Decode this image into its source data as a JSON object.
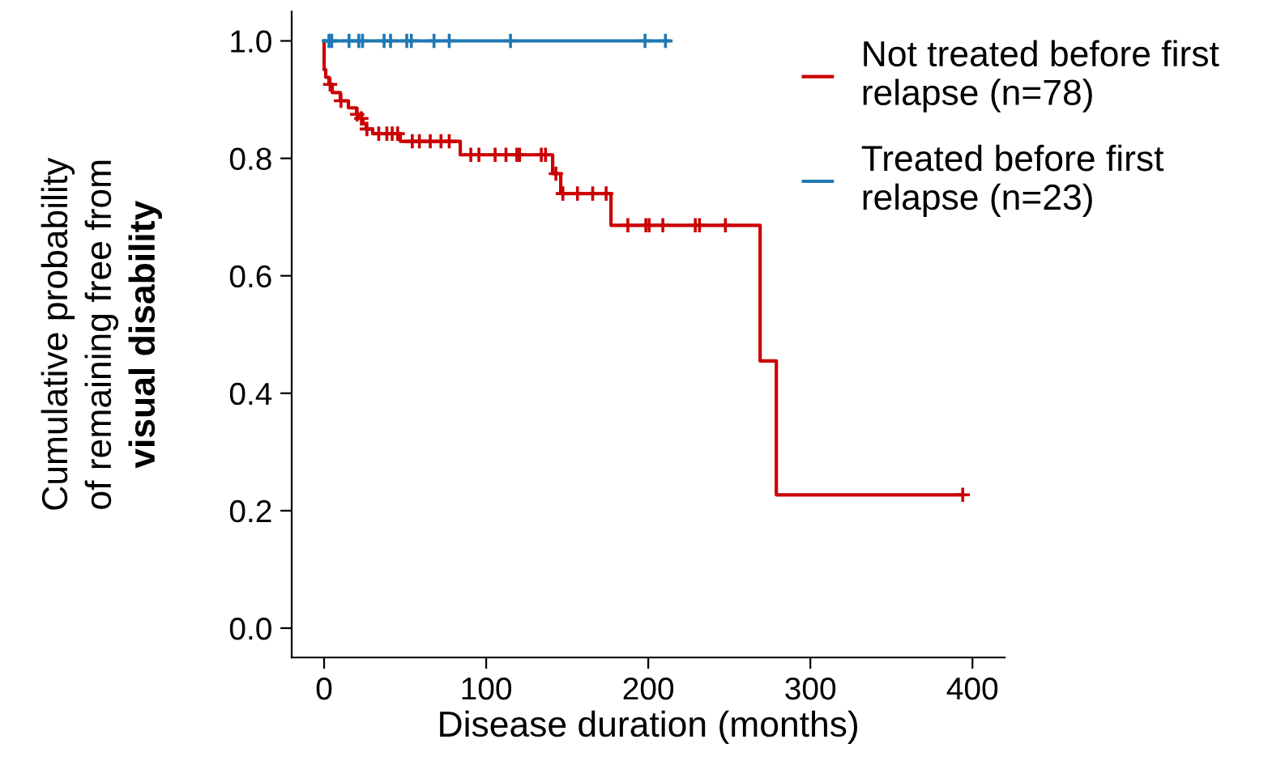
{
  "chart_data": {
    "type": "step",
    "xlabel": "Disease duration (months)",
    "ylabel": "Cumulative probability\nof remaining free from\nvisual disability",
    "xlim": [
      -20,
      420
    ],
    "xticks": [
      0,
      100,
      200,
      300,
      400
    ],
    "ylim": [
      -0.05,
      1.05
    ],
    "yticks": [
      {
        "value": 0,
        "label": "0.0"
      },
      {
        "value": 0.2,
        "label": "0.2"
      },
      {
        "value": 0.4,
        "label": "0.4"
      },
      {
        "value": 0.6,
        "label": "0.6"
      },
      {
        "value": 0.8,
        "label": "0.8"
      },
      {
        "value": 1,
        "label": "1.0"
      }
    ],
    "grid": false,
    "legend": "top right",
    "line_style": "solid",
    "series": [
      {
        "name": "Not treated before first\nrelapse (n=78)",
        "color": "#cc0000",
        "x": [
          0,
          0,
          1,
          3,
          5,
          10,
          15,
          20,
          22,
          24,
          26,
          30,
          47,
          84,
          141,
          146,
          177,
          269,
          279,
          394
        ],
        "values": [
          1.0,
          0.951,
          0.938,
          0.926,
          0.912,
          0.898,
          0.886,
          0.875,
          0.868,
          0.859,
          0.85,
          0.842,
          0.829,
          0.806,
          0.774,
          0.74,
          0.686,
          0.455,
          0.227,
          0.227
        ]
      },
      {
        "name": "Treated before first\nrelapse (n=23)",
        "color": "#1f78b4",
        "x": [
          0,
          213
        ],
        "values": [
          1.0,
          1.0
        ]
      },
      {
        "type": "scatter",
        "marker": "cross",
        "color": "#cc0000",
        "x": [
          3.7,
          10.4,
          20.4,
          23,
          26.4,
          33.7,
          38.7,
          42,
          45.4,
          54.4,
          58.8,
          65.5,
          72.1,
          77.2,
          90.5,
          95.5,
          105.5,
          112.2,
          118.9,
          120.6,
          134,
          136.6,
          143,
          147.3,
          156.3,
          165.7,
          174,
          187.4,
          198.5,
          200.5,
          209,
          229,
          231.6,
          247.6,
          394
        ],
        "values": [
          0.926,
          0.898,
          0.875,
          0.868,
          0.85,
          0.842,
          0.842,
          0.842,
          0.842,
          0.829,
          0.829,
          0.829,
          0.829,
          0.829,
          0.806,
          0.806,
          0.806,
          0.806,
          0.806,
          0.806,
          0.806,
          0.806,
          0.774,
          0.74,
          0.74,
          0.74,
          0.74,
          0.686,
          0.686,
          0.686,
          0.686,
          0.686,
          0.686,
          0.686,
          0.227
        ]
      },
      {
        "type": "scatter",
        "marker": "cross",
        "color": "#1f78b4",
        "x": [
          3,
          4.7,
          15.4,
          21.4,
          23.7,
          37,
          41,
          51,
          53.8,
          67.8,
          77.2,
          115,
          198,
          210.6
        ],
        "values": [
          1,
          1,
          1,
          1,
          1,
          1,
          1,
          1,
          1,
          1,
          1,
          1,
          1,
          1
        ]
      }
    ]
  }
}
